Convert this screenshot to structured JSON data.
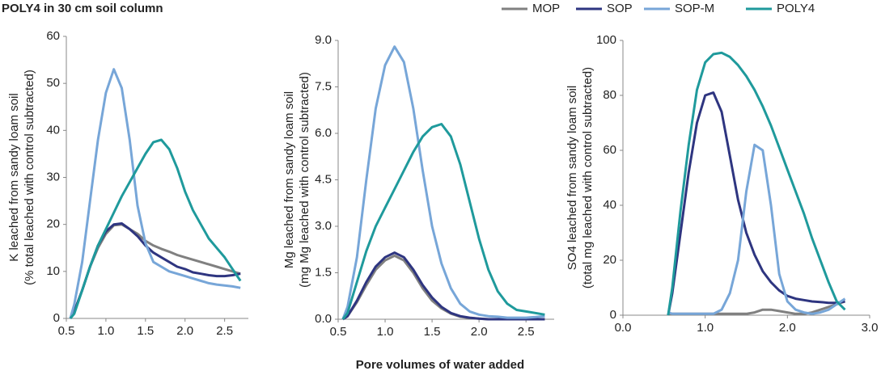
{
  "title": "POLY4 in 30 cm soil column",
  "xlabel": "Pore volumes of water added",
  "chart_data": [
    {
      "type": "line",
      "ylabel": [
        "K leached from sandy loam soil",
        "(% total leached with control subtracted)"
      ],
      "xlim": [
        0.5,
        2.8
      ],
      "xticks": [
        0.5,
        {
          "value": 1,
          "label": "1.0"
        },
        1.5,
        {
          "value": 2,
          "label": "2.0"
        },
        2.5
      ],
      "ylim": [
        0,
        60
      ],
      "yticks": [
        0,
        10,
        20,
        30,
        40,
        50,
        60
      ],
      "x": [
        0.55,
        0.6,
        0.7,
        0.8,
        0.9,
        1.0,
        1.1,
        1.2,
        1.3,
        1.4,
        1.5,
        1.6,
        1.7,
        1.8,
        1.9,
        2.0,
        2.1,
        2.2,
        2.3,
        2.4,
        2.5,
        2.6,
        2.7
      ],
      "series": [
        {
          "name": "MOP",
          "color": "#808080",
          "values": [
            0,
            1.5,
            6,
            11,
            15,
            18,
            19.8,
            20,
            19,
            18,
            16.5,
            15.5,
            14.8,
            14.2,
            13.5,
            13,
            12.5,
            12,
            11.5,
            11,
            10.5,
            10,
            9.5
          ]
        },
        {
          "name": "SOP",
          "color": "#2e3580",
          "values": [
            0,
            1.5,
            6,
            11,
            15.5,
            18.5,
            20,
            20.2,
            19,
            17.5,
            15.5,
            14,
            13,
            12,
            11,
            10.5,
            9.8,
            9.5,
            9.2,
            9,
            9,
            9.2,
            9.5
          ]
        },
        {
          "name": "SOP-M",
          "color": "#77a6d8",
          "values": [
            0,
            3,
            12,
            25,
            38,
            48,
            53,
            49,
            38,
            24,
            16,
            12,
            11,
            10,
            9.5,
            9,
            8.5,
            8,
            7.5,
            7.2,
            7,
            6.8,
            6.5
          ]
        },
        {
          "name": "POLY4",
          "color": "#1f9a9c",
          "values": [
            0,
            1,
            6,
            11,
            15.5,
            19,
            22.5,
            26,
            29,
            32,
            35,
            37.5,
            38,
            36,
            32,
            27,
            23,
            20,
            17,
            15,
            13,
            10.5,
            8
          ]
        }
      ]
    },
    {
      "type": "line",
      "ylabel": [
        "Mg leached from sandy loam soil",
        "(mg Mg leached with control subtracted)"
      ],
      "xlim": [
        0.5,
        2.8
      ],
      "xticks": [
        0.5,
        {
          "value": 1,
          "label": "1.0"
        },
        1.5,
        {
          "value": 2,
          "label": "2.0"
        },
        2.5
      ],
      "ylim": [
        0,
        9
      ],
      "yticks": [
        {
          "value": 0,
          "label": "0.0"
        },
        1.5,
        {
          "value": 3,
          "label": "3.0"
        },
        4.5,
        {
          "value": 6,
          "label": "6.0"
        },
        7.5,
        {
          "value": 9,
          "label": "9.0"
        }
      ],
      "x": [
        0.55,
        0.6,
        0.7,
        0.8,
        0.9,
        1.0,
        1.1,
        1.2,
        1.3,
        1.4,
        1.5,
        1.6,
        1.7,
        1.8,
        1.9,
        2.0,
        2.1,
        2.2,
        2.3,
        2.4,
        2.5,
        2.6,
        2.7
      ],
      "series": [
        {
          "name": "MOP",
          "color": "#808080",
          "values": [
            0,
            0.1,
            0.55,
            1.1,
            1.6,
            1.9,
            2.05,
            1.9,
            1.5,
            1,
            0.6,
            0.35,
            0.18,
            0.08,
            0.04,
            0.02,
            0,
            0,
            0,
            0,
            0,
            0,
            0
          ]
        },
        {
          "name": "SOP",
          "color": "#2e3580",
          "values": [
            0,
            0.1,
            0.6,
            1.2,
            1.7,
            2,
            2.15,
            2,
            1.6,
            1.1,
            0.7,
            0.4,
            0.2,
            0.1,
            0.05,
            0.02,
            0,
            0,
            0,
            0,
            0,
            0,
            0
          ]
        },
        {
          "name": "SOP-M",
          "color": "#77a6d8",
          "values": [
            0,
            0.4,
            2,
            4.5,
            6.8,
            8.2,
            8.8,
            8.3,
            6.8,
            4.8,
            3,
            1.8,
            1,
            0.5,
            0.25,
            0.15,
            0.1,
            0.08,
            0.05,
            0.05,
            0.05,
            0.07,
            0.1
          ]
        },
        {
          "name": "POLY4",
          "color": "#1f9a9c",
          "values": [
            0,
            0.2,
            1.2,
            2.2,
            3,
            3.6,
            4.2,
            4.8,
            5.4,
            5.9,
            6.2,
            6.3,
            5.9,
            5,
            3.8,
            2.6,
            1.6,
            0.9,
            0.5,
            0.3,
            0.25,
            0.2,
            0.15
          ]
        }
      ]
    },
    {
      "type": "line",
      "ylabel": [
        "SO4 leached from sandy loam soil",
        "(total mg leached with control subtracted)"
      ],
      "xlim": [
        0,
        3
      ],
      "xticks": [
        {
          "value": 0,
          "label": "0.0"
        },
        {
          "value": 1,
          "label": "1.0"
        },
        {
          "value": 2,
          "label": "2.0"
        },
        {
          "value": 3,
          "label": "3.0"
        }
      ],
      "ylim": [
        0,
        100
      ],
      "yticks": [
        0,
        20,
        40,
        60,
        80,
        100
      ],
      "x": [
        0.55,
        0.6,
        0.7,
        0.8,
        0.9,
        1.0,
        1.1,
        1.2,
        1.3,
        1.4,
        1.5,
        1.6,
        1.7,
        1.8,
        1.9,
        2.0,
        2.1,
        2.2,
        2.3,
        2.4,
        2.5,
        2.6,
        2.7
      ],
      "series": [
        {
          "name": "MOP",
          "color": "#808080",
          "values": [
            0.5,
            0.5,
            0.5,
            0.5,
            0.5,
            0.5,
            0.5,
            0.5,
            0.5,
            0.5,
            0.5,
            1,
            2,
            2,
            1.5,
            1,
            0.5,
            0.5,
            1,
            2,
            3,
            4,
            5
          ]
        },
        {
          "name": "SOP",
          "color": "#2e3580",
          "values": [
            0,
            8,
            30,
            52,
            70,
            80,
            81,
            74,
            58,
            42,
            30,
            22,
            16,
            12,
            9,
            7,
            6,
            5.5,
            5,
            4.8,
            4.5,
            4.5,
            5
          ]
        },
        {
          "name": "SOP-M",
          "color": "#77a6d8",
          "values": [
            1,
            0.5,
            0.5,
            0.5,
            0.5,
            0.5,
            0.5,
            2,
            8,
            20,
            45,
            62,
            60,
            40,
            15,
            5,
            2,
            1,
            0.5,
            1,
            2,
            4,
            6
          ]
        },
        {
          "name": "POLY4",
          "color": "#1f9a9c",
          "values": [
            0,
            10,
            38,
            62,
            82,
            92,
            95,
            95.5,
            94,
            91,
            87,
            82,
            76,
            69,
            61,
            53,
            45,
            37,
            28,
            20,
            12,
            5,
            2
          ]
        }
      ]
    }
  ]
}
